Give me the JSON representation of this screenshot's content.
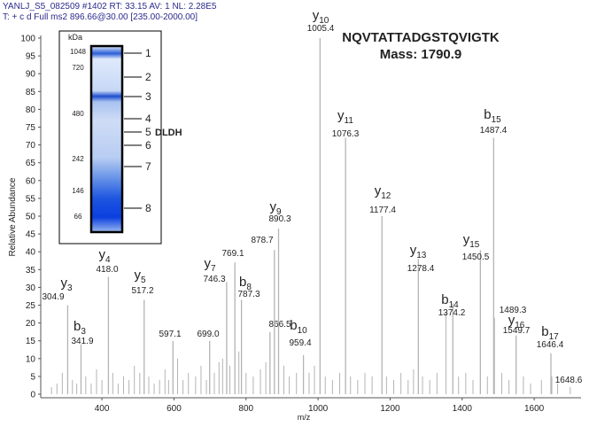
{
  "chart_data": {
    "type": "spectrum",
    "header": [
      "YANLJ_S5_082509 #1402  RT: 33.15  AV: 1  NL: 2.28E5",
      "T: + c d Full ms2 896.66@30.00 [235.00-2000.00]"
    ],
    "title": "NQVTATTADGSTQVIGTK",
    "subtitle": "Mass: 1790.9",
    "x_label": "m/z",
    "y_label": "Relative Abundance",
    "xlim": [
      235,
      1730
    ],
    "ylim": [
      0,
      100
    ],
    "xticks": [
      400,
      600,
      800,
      1000,
      1200,
      1400,
      1600
    ],
    "yticks": [
      0,
      5,
      10,
      15,
      20,
      25,
      30,
      35,
      40,
      45,
      50,
      55,
      60,
      65,
      70,
      75,
      80,
      85,
      90,
      95,
      100
    ],
    "color": "#b4b4b4",
    "peaks": {
      "x": [
        304.9,
        341.9,
        418.0,
        517.2,
        597.1,
        699.0,
        746.3,
        769.1,
        787.3,
        866.5,
        878.7,
        890.3,
        959.4,
        1005.4,
        1076.3,
        1177.4,
        1278.4,
        1374.2,
        1450.5,
        1487.4,
        1489.3,
        1549.7,
        1646.4,
        1648.6
      ],
      "x_labels": [
        "304.9",
        "341.9",
        "418.0",
        "517.2",
        "597.1",
        "699.0",
        "746.3",
        "769.1",
        "787.3",
        "866.5",
        "878.7",
        "890.3",
        "959.4",
        "1005.4",
        "1076.3",
        "1177.4",
        "1278.4",
        "1374.2",
        "1450.5",
        "1487.4",
        "1489.3",
        "1549.7",
        "1646.4",
        "1648.6"
      ],
      "values": [
        25,
        14,
        33,
        26.5,
        15,
        15,
        31.5,
        37,
        26.5,
        17.5,
        40.5,
        46.5,
        11,
        100,
        72,
        50,
        38,
        25.5,
        40.5,
        72,
        21.5,
        16.5,
        11.5,
        5
      ],
      "ions": [
        {
          "letter": "y",
          "sub": "3"
        },
        {
          "letter": "b",
          "sub": "3"
        },
        {
          "letter": "y",
          "sub": "4"
        },
        {
          "letter": "y",
          "sub": "5"
        },
        null,
        null,
        {
          "letter": "y",
          "sub": "7"
        },
        null,
        {
          "letter": "b",
          "sub": "8"
        },
        null,
        null,
        {
          "letter": "y",
          "sub": "9"
        },
        {
          "letter": "b",
          "sub": "10"
        },
        {
          "letter": "y",
          "sub": "10"
        },
        {
          "letter": "y",
          "sub": "11"
        },
        {
          "letter": "y",
          "sub": "12"
        },
        {
          "letter": "y",
          "sub": "13"
        },
        {
          "letter": "b",
          "sub": "14"
        },
        {
          "letter": "y",
          "sub": "15"
        },
        {
          "letter": "b",
          "sub": "15"
        },
        null,
        {
          "letter": "y",
          "sub": "16"
        },
        {
          "letter": "b",
          "sub": "17"
        },
        null
      ]
    },
    "noise": {
      "x": [
        260,
        275,
        290,
        318,
        330,
        355,
        370,
        385,
        400,
        430,
        445,
        460,
        475,
        490,
        505,
        530,
        545,
        560,
        575,
        585,
        610,
        625,
        640,
        660,
        675,
        690,
        712,
        725,
        735,
        755,
        780,
        800,
        820,
        840,
        855,
        905,
        920,
        940,
        975,
        990,
        1020,
        1040,
        1060,
        1090,
        1110,
        1130,
        1150,
        1190,
        1210,
        1230,
        1250,
        1265,
        1290,
        1310,
        1330,
        1355,
        1390,
        1410,
        1430,
        1470,
        1510,
        1530,
        1570,
        1590,
        1620,
        1665,
        1700
      ],
      "values": [
        2,
        3,
        6,
        4,
        3,
        5,
        3,
        7,
        4,
        6,
        3,
        5,
        4,
        8,
        6,
        5,
        3,
        4,
        7,
        4,
        10,
        4,
        6,
        5,
        8,
        4,
        6,
        9,
        10,
        8,
        12,
        6,
        5,
        7,
        9,
        8,
        5,
        6,
        6,
        8,
        5,
        4,
        6,
        5,
        4,
        6,
        5,
        5,
        4,
        6,
        4,
        7,
        5,
        4,
        6,
        23,
        5,
        6,
        4,
        5,
        6,
        4,
        5,
        3,
        4,
        3,
        2
      ]
    },
    "inset": {
      "unit": "kDa",
      "markers": [
        "1048",
        "720",
        "480",
        "242",
        "146",
        "66"
      ],
      "bands": [
        "1",
        "2",
        "3",
        "4",
        "5",
        "6",
        "7",
        "8"
      ],
      "band_note": "DLDH"
    }
  }
}
